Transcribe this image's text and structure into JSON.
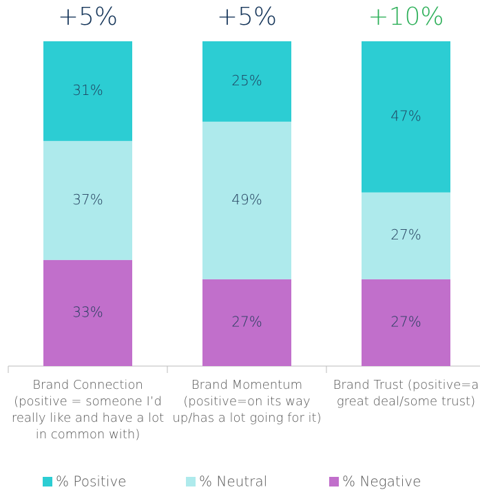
{
  "chart_data": {
    "type": "stacked-bar",
    "categories": [
      "Brand Connection (positive = someone I’d really like and have a lot in common with)",
      "Brand Momentum (positive=on its way up/has a lot going for it)",
      "Brand Trust (positive=a great deal/some trust)"
    ],
    "series": [
      {
        "name": "% Negative",
        "color": "#c16fcb",
        "values": [
          33,
          27,
          27
        ],
        "value_labels": [
          "33%",
          "27%",
          "27%"
        ]
      },
      {
        "name": "% Neutral",
        "color": "#aeeaec",
        "values": [
          37,
          49,
          27
        ],
        "value_labels": [
          "37%",
          "49%",
          "27%"
        ]
      },
      {
        "name": "% Positive",
        "color": "#2ccdd3",
        "values": [
          31,
          25,
          47
        ],
        "value_labels": [
          "31%",
          "25%",
          "47%"
        ]
      }
    ],
    "annotations": [
      {
        "text": "+5%",
        "color": "#16365a"
      },
      {
        "text": "+5%",
        "color": "#16365a"
      },
      {
        "text": "+10%",
        "color": "#2fb05a"
      }
    ],
    "ylim": [
      0,
      101
    ],
    "legend_order": [
      "% Positive",
      "% Neutral",
      "% Negative"
    ]
  }
}
